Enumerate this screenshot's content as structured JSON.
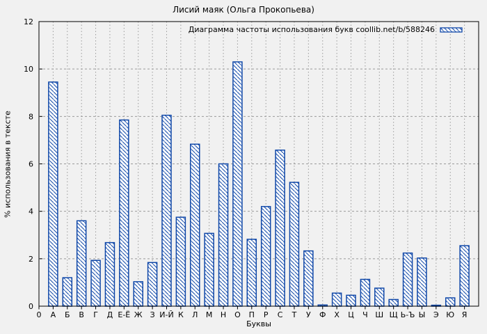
{
  "title": "Лисий маяк (Ольга Прокопьева)",
  "colors": {
    "background": "#f1f1f1",
    "bar_stroke": "#0f47a8",
    "bar_fill": "#ffffff",
    "grid": "#9a9a9a",
    "axis": "#000000",
    "text": "#000000"
  },
  "chart_data": {
    "type": "bar",
    "title": "Лисий маяк (Ольга Прокопьева)",
    "legend_label": "Диаграмма частоты использования букв coollib.net/b/588246",
    "legend_position": "top-right",
    "legend_swatch": "diagonal-hatch-bar-swatch",
    "xlabel": "Буквы",
    "ylabel": "% использования в тексте",
    "x_origin_label": "0",
    "categories": [
      "А",
      "Б",
      "В",
      "Г",
      "Д",
      "Е-Ё",
      "Ж",
      "З",
      "И-Й",
      "К",
      "Л",
      "М",
      "Н",
      "О",
      "П",
      "Р",
      "С",
      "Т",
      "У",
      "Ф",
      "Х",
      "Ц",
      "Ч",
      "Ш",
      "Щ",
      "Ь-Ъ",
      "Ы",
      "Э",
      "Ю",
      "Я"
    ],
    "values": [
      9.45,
      1.2,
      3.6,
      1.93,
      2.68,
      7.85,
      1.03,
      1.84,
      8.05,
      3.75,
      6.83,
      3.07,
      6.0,
      10.3,
      2.82,
      4.2,
      6.58,
      5.22,
      2.33,
      0.05,
      0.55,
      0.46,
      1.13,
      0.76,
      0.28,
      2.24,
      2.03,
      0.04,
      0.35,
      2.55
    ],
    "ylim": [
      0,
      12
    ],
    "yticks": [
      0,
      2,
      4,
      6,
      8,
      10,
      12
    ],
    "grid": true,
    "bar_style": "diagonal-hatch"
  }
}
